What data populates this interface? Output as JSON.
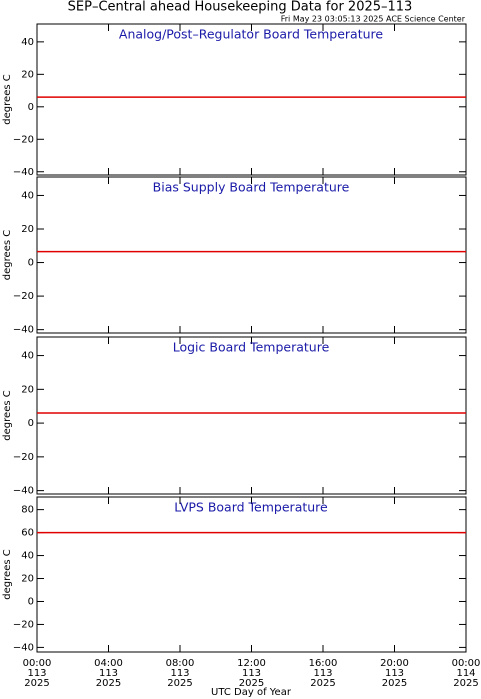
{
  "header": {
    "title": "SEP–Central ahead Housekeeping Data for 2025–113",
    "subtitle": "Fri May 23 03:05:13 2025 ACE Science Center"
  },
  "x_axis": {
    "label": "UTC Day of Year",
    "xlim": [
      0,
      24
    ],
    "xticks": [
      {
        "value": 0,
        "label": [
          "00:00",
          "113",
          "2025"
        ]
      },
      {
        "value": 4,
        "label": [
          "04:00",
          "113",
          "2025"
        ]
      },
      {
        "value": 8,
        "label": [
          "08:00",
          "113",
          "2025"
        ]
      },
      {
        "value": 12,
        "label": [
          "12:00",
          "113",
          "2025"
        ]
      },
      {
        "value": 16,
        "label": [
          "16:00",
          "113",
          "2025"
        ]
      },
      {
        "value": 20,
        "label": [
          "20:00",
          "113",
          "2025"
        ]
      },
      {
        "value": 24,
        "label": [
          "00:00",
          "114",
          "2025"
        ]
      }
    ]
  },
  "chart_data": [
    {
      "type": "line",
      "title": "Analog/Post–Regulator Board Temperature",
      "ylabel": "degrees C",
      "x": [
        0,
        24
      ],
      "values": [
        6,
        6
      ],
      "color": "#e00000",
      "ylim": [
        -42,
        51
      ],
      "yticks": [
        {
          "value": -40,
          "label": "−40"
        },
        {
          "value": -20,
          "label": "−20"
        },
        0,
        20,
        40
      ]
    },
    {
      "type": "line",
      "title": "Bias Supply Board Temperature",
      "ylabel": "degrees C",
      "x": [
        0,
        24
      ],
      "values": [
        6.5,
        6.5
      ],
      "color": "#e00000",
      "ylim": [
        -42,
        51
      ],
      "yticks": [
        {
          "value": -40,
          "label": "−40"
        },
        {
          "value": -20,
          "label": "−20"
        },
        0,
        20,
        40
      ]
    },
    {
      "type": "line",
      "title": "Logic Board Temperature",
      "ylabel": "degrees C",
      "x": [
        0,
        24
      ],
      "values": [
        6,
        6
      ],
      "color": "#e00000",
      "ylim": [
        -42,
        51
      ],
      "yticks": [
        {
          "value": -40,
          "label": "−40"
        },
        {
          "value": -20,
          "label": "−20"
        },
        0,
        20,
        40
      ]
    },
    {
      "type": "line",
      "title": "LVPS Board Temperature",
      "ylabel": "degrees C",
      "x": [
        0,
        24
      ],
      "values": [
        60,
        60
      ],
      "color": "#e00000",
      "ylim": [
        -44,
        91
      ],
      "yticks": [
        {
          "value": -40,
          "label": "−40"
        },
        {
          "value": -20,
          "label": "−20"
        },
        0,
        20,
        40,
        60,
        80
      ]
    }
  ]
}
